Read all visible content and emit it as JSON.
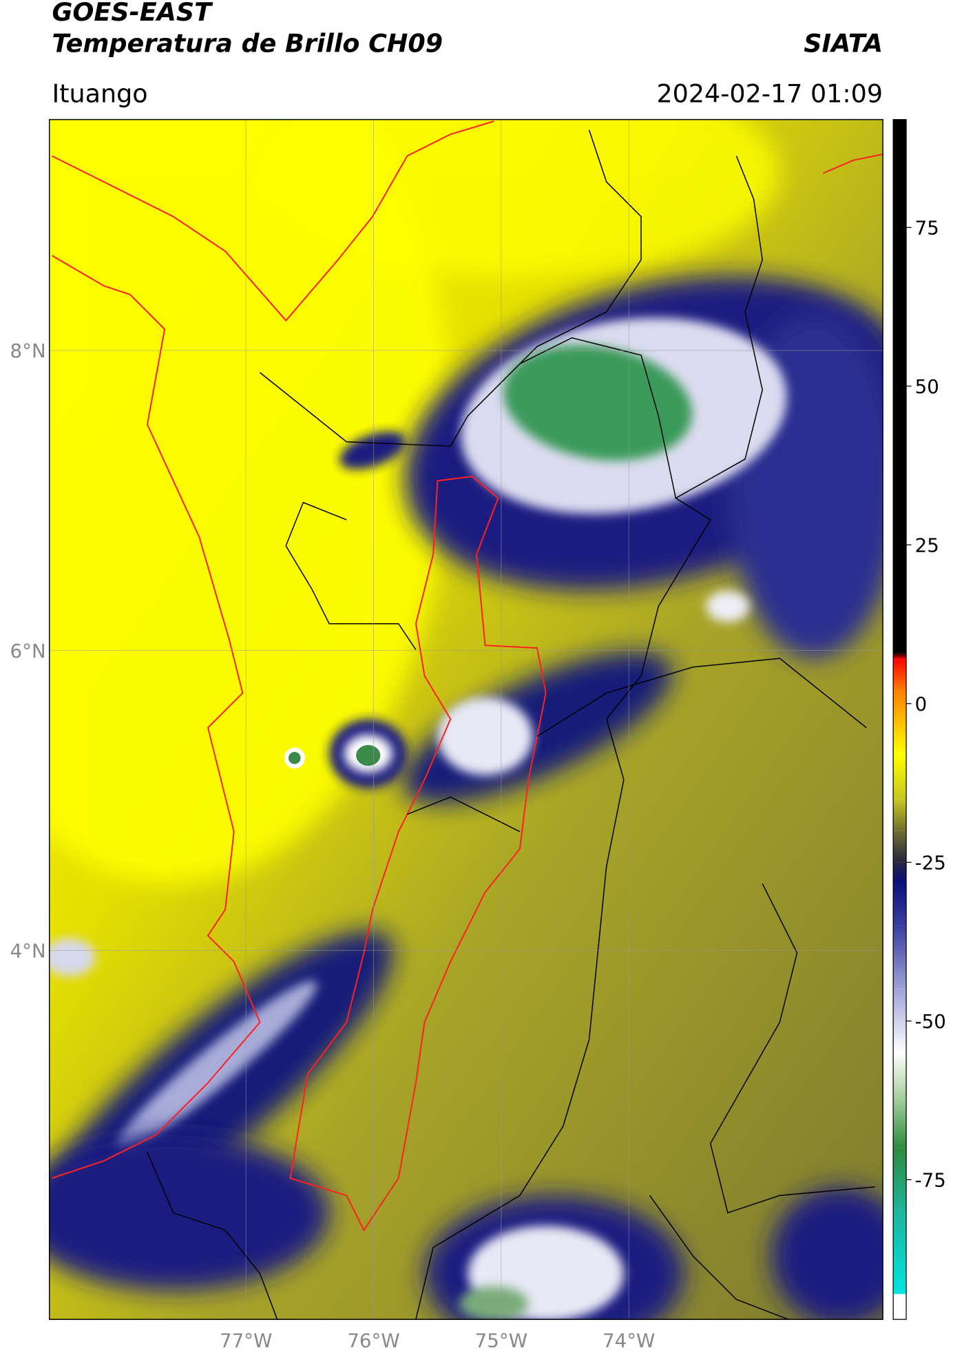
{
  "header": {
    "title": "GOES-EAST",
    "subtitle": "Temperatura de Brillo CH09",
    "org": "SIATA",
    "location": "Ituango",
    "datetime": "2024-02-17 01:09"
  },
  "map": {
    "xlim": [
      -78.54,
      -72.01
    ],
    "ylim": [
      1.54,
      9.54
    ],
    "xticks": [
      {
        "value": -77,
        "label": "77°W"
      },
      {
        "value": -76,
        "label": "76°W"
      },
      {
        "value": -75,
        "label": "75°W"
      },
      {
        "value": -74,
        "label": "74°W"
      }
    ],
    "yticks": [
      {
        "value": 8,
        "label": "8°N"
      },
      {
        "value": 6,
        "label": "6°N"
      },
      {
        "value": 4,
        "label": "4°N"
      }
    ],
    "grid": true
  },
  "colorbar": {
    "lim": [
      -97,
      92
    ],
    "ticks": [
      75,
      50,
      25,
      0,
      -25,
      -50,
      -75
    ],
    "stops": [
      {
        "value": -97,
        "color": "#ffffff"
      },
      {
        "value": -93,
        "color": "#ffffff"
      },
      {
        "value": -93,
        "color": "#00e5e0"
      },
      {
        "value": -80,
        "color": "#20b49c"
      },
      {
        "value": -70,
        "color": "#2e8b3e"
      },
      {
        "value": -62,
        "color": "#a8d0a0"
      },
      {
        "value": -55,
        "color": "#ffffff"
      },
      {
        "value": -45,
        "color": "#9fa3d6"
      },
      {
        "value": -35,
        "color": "#3a3f9e"
      },
      {
        "value": -28,
        "color": "#0a1075"
      },
      {
        "value": -25,
        "color": "#262640"
      },
      {
        "value": -20,
        "color": "#707030"
      },
      {
        "value": -15,
        "color": "#c8c820"
      },
      {
        "value": -8,
        "color": "#ffff00"
      },
      {
        "value": -3,
        "color": "#ffc000"
      },
      {
        "value": 2,
        "color": "#ff8000"
      },
      {
        "value": 7,
        "color": "#ff0000"
      },
      {
        "value": 8,
        "color": "#000000"
      },
      {
        "value": 92,
        "color": "#000000"
      }
    ]
  }
}
